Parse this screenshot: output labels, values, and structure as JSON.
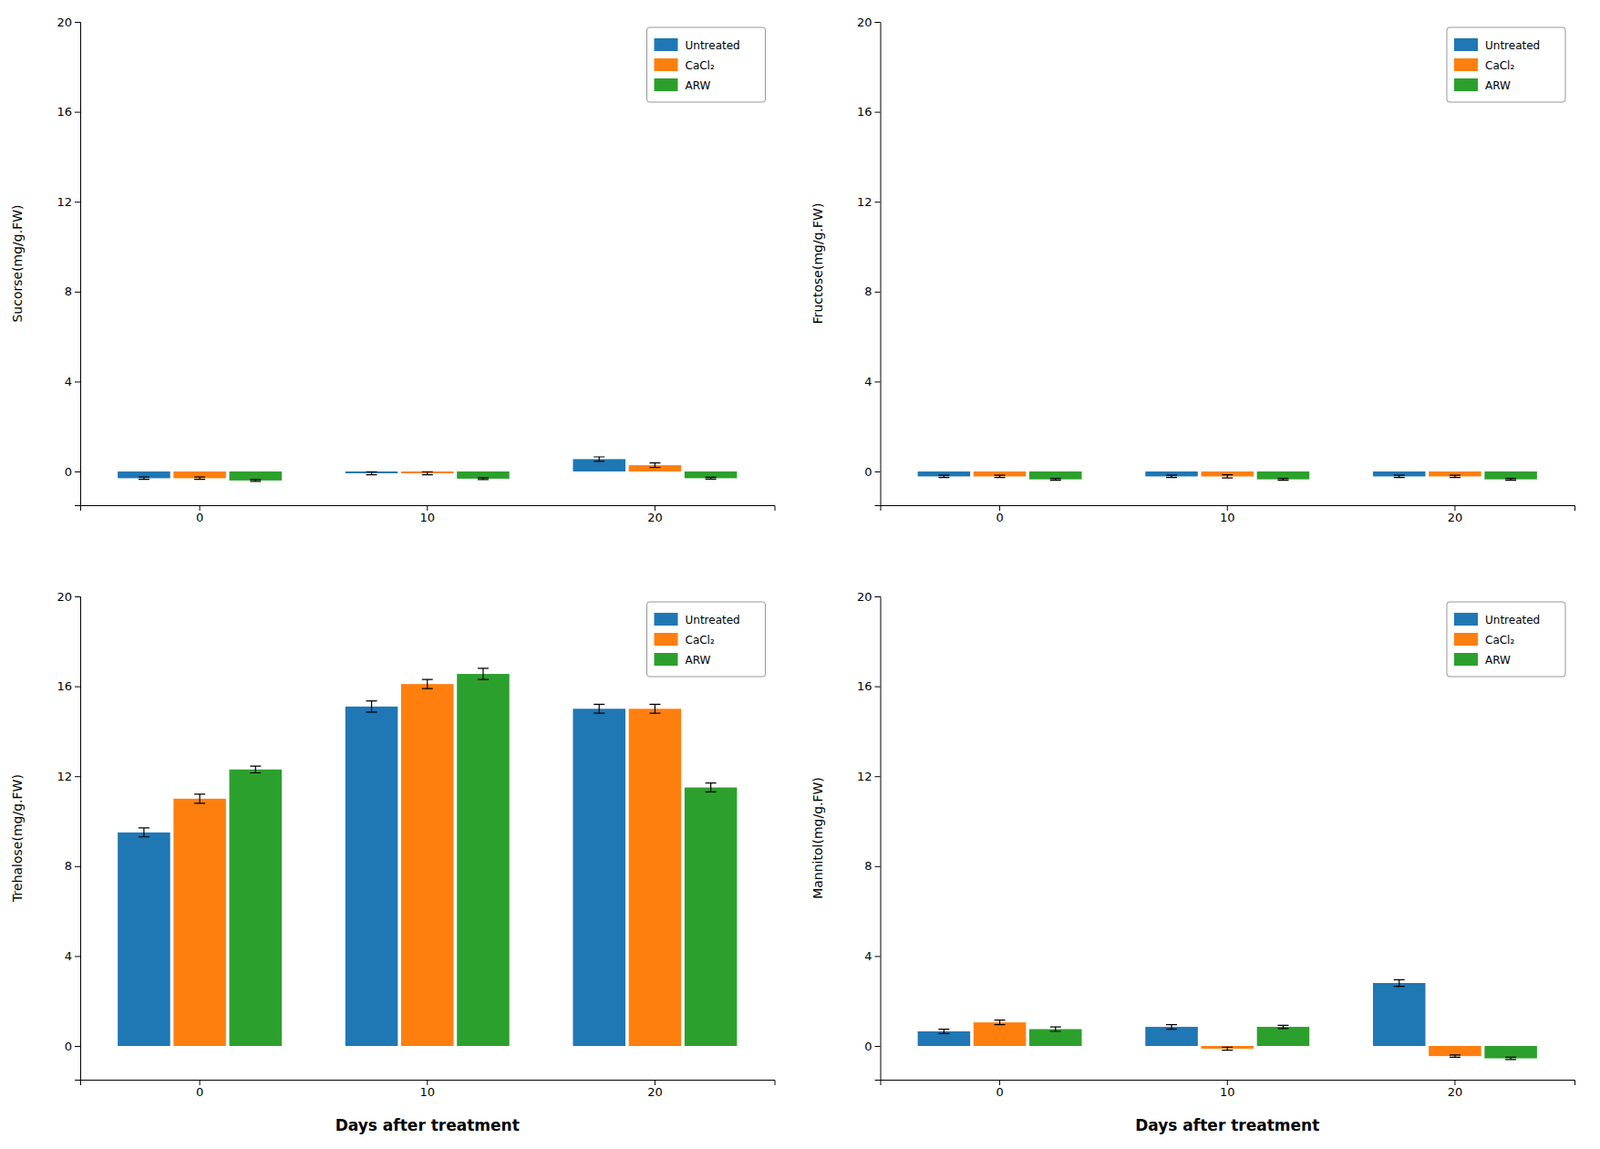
{
  "chart_data": [
    {
      "type": "bar",
      "ylabel": "Sucorse(mg/g.FW)",
      "categories": [
        "0",
        "10",
        "20"
      ],
      "series": [
        {
          "name": "Untreated",
          "values": [
            -0.3,
            -0.08,
            0.55
          ],
          "errors": [
            0.05,
            0.07,
            0.1
          ]
        },
        {
          "name": "CaCl₂",
          "values": [
            -0.3,
            -0.08,
            0.28
          ],
          "errors": [
            0.05,
            0.07,
            0.1
          ]
        },
        {
          "name": "ARW",
          "values": [
            -0.4,
            -0.32,
            -0.3
          ],
          "errors": [
            0.04,
            0.04,
            0.04
          ]
        }
      ],
      "ylim": [
        -1.5,
        20
      ],
      "yticks": [
        0,
        4,
        8,
        12,
        16,
        20
      ],
      "grid": false,
      "legend": "upper right"
    },
    {
      "type": "bar",
      "ylabel": "Fructose(mg/g.FW)",
      "categories": [
        "0",
        "10",
        "20"
      ],
      "series": [
        {
          "name": "Untreated",
          "values": [
            -0.22,
            -0.22,
            -0.22
          ],
          "errors": [
            0.05,
            0.05,
            0.05
          ]
        },
        {
          "name": "CaCl₂",
          "values": [
            -0.22,
            -0.22,
            -0.22
          ],
          "errors": [
            0.05,
            0.07,
            0.05
          ]
        },
        {
          "name": "ARW",
          "values": [
            -0.35,
            -0.35,
            -0.35
          ],
          "errors": [
            0.04,
            0.04,
            0.04
          ]
        }
      ],
      "ylim": [
        -1.5,
        20
      ],
      "yticks": [
        0,
        4,
        8,
        12,
        16,
        20
      ],
      "grid": false,
      "legend": "upper right"
    },
    {
      "type": "bar",
      "ylabel": "Trehalose(mg/g.FW)",
      "xlabel": "Days after treatment",
      "categories": [
        "0",
        "10",
        "20"
      ],
      "series": [
        {
          "name": "Untreated",
          "values": [
            9.5,
            15.1,
            15.0
          ],
          "errors": [
            0.2,
            0.25,
            0.2
          ]
        },
        {
          "name": "CaCl₂",
          "values": [
            11.0,
            16.1,
            15.0
          ],
          "errors": [
            0.2,
            0.2,
            0.2
          ]
        },
        {
          "name": "ARW",
          "values": [
            12.3,
            16.55,
            11.5
          ],
          "errors": [
            0.15,
            0.25,
            0.2
          ]
        }
      ],
      "ylim": [
        -1.5,
        20
      ],
      "yticks": [
        0,
        4,
        8,
        12,
        16,
        20
      ],
      "grid": false,
      "legend": "upper right"
    },
    {
      "type": "bar",
      "ylabel": "Mannitol(mg/g.FW)",
      "xlabel": "Days after treatment",
      "categories": [
        "0",
        "10",
        "20"
      ],
      "series": [
        {
          "name": "Untreated",
          "values": [
            0.65,
            0.85,
            2.8
          ],
          "errors": [
            0.1,
            0.1,
            0.15
          ]
        },
        {
          "name": "CaCl₂",
          "values": [
            1.05,
            -0.12,
            -0.45
          ],
          "errors": [
            0.1,
            0.07,
            0.05
          ]
        },
        {
          "name": "ARW",
          "values": [
            0.75,
            0.85,
            -0.55
          ],
          "errors": [
            0.1,
            0.07,
            0.05
          ]
        }
      ],
      "ylim": [
        -1.5,
        20
      ],
      "yticks": [
        0,
        4,
        8,
        12,
        16,
        20
      ],
      "grid": false,
      "legend": "upper right"
    }
  ]
}
